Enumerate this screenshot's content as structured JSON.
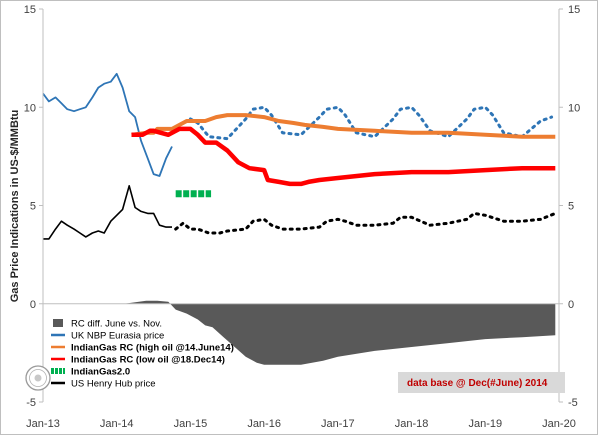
{
  "chart_data": {
    "type": "line",
    "ylabel": "Gas Price  Indications in US-$/MMBtu",
    "ylim": [
      -5,
      15
    ],
    "yticks": [
      -5,
      0,
      5,
      10,
      15
    ],
    "y2ticks": [
      -5,
      0,
      5,
      10,
      15
    ],
    "xlim": [
      2013.0,
      2020.0
    ],
    "xticks": [
      {
        "x": 2013.0,
        "label": "Jan-13"
      },
      {
        "x": 2014.0,
        "label": "Jan-14"
      },
      {
        "x": 2015.0,
        "label": "Jan-15"
      },
      {
        "x": 2016.0,
        "label": "Jan-16"
      },
      {
        "x": 2017.0,
        "label": "Jan-17"
      },
      {
        "x": 2018.0,
        "label": "Jan-18"
      },
      {
        "x": 2019.0,
        "label": "Jan-19"
      },
      {
        "x": 2020.0,
        "label": "Jan-20"
      }
    ],
    "grid": false,
    "legend_position": "bottom-left",
    "note": "data base @ Dec(#June) 2014",
    "series": [
      {
        "name": "RC diff. June vs. Nov.",
        "kind": "area",
        "color": "#595959",
        "x": [
          2014.1,
          2014.4,
          2014.55,
          2014.7,
          2014.8,
          2014.95,
          2015.1,
          2015.2,
          2015.3,
          2015.45,
          2015.6,
          2015.75,
          2015.9,
          2016.0,
          2016.2,
          2016.5,
          2016.8,
          2017.0,
          2017.5,
          2018.0,
          2018.5,
          2019.0,
          2019.5,
          2019.95
        ],
        "y": [
          0.0,
          0.15,
          0.15,
          0.1,
          -0.3,
          -0.5,
          -0.8,
          -1.1,
          -1.2,
          -1.7,
          -2.2,
          -2.7,
          -3.0,
          -3.1,
          -3.1,
          -3.1,
          -2.9,
          -2.7,
          -2.4,
          -2.2,
          -2.0,
          -1.8,
          -1.7,
          -1.6
        ]
      },
      {
        "name": "UK NBP Eurasia price",
        "kind": "line",
        "color": "#2e75b6",
        "x": [
          2013.0,
          2013.08,
          2013.17,
          2013.25,
          2013.33,
          2013.42,
          2013.5,
          2013.58,
          2013.67,
          2013.75,
          2013.83,
          2013.92,
          2014.0,
          2014.08,
          2014.17,
          2014.25,
          2014.33,
          2014.42,
          2014.5,
          2014.58,
          2014.67,
          2014.75
        ],
        "y": [
          10.7,
          10.3,
          10.5,
          10.2,
          9.9,
          9.8,
          9.9,
          10.0,
          10.5,
          11.0,
          11.2,
          11.3,
          11.7,
          11.0,
          9.8,
          9.5,
          8.3,
          7.4,
          6.6,
          6.5,
          7.4,
          8.0
        ]
      },
      {
        "name": "UK NBP Eurasia price (forward)",
        "kind": "dotted",
        "color": "#2e75b6",
        "x": [
          2015.0,
          2015.1,
          2015.25,
          2015.5,
          2015.75,
          2015.85,
          2016.0,
          2016.1,
          2016.25,
          2016.5,
          2016.75,
          2016.85,
          2017.0,
          2017.1,
          2017.25,
          2017.5,
          2017.75,
          2017.85,
          2018.0,
          2018.1,
          2018.25,
          2018.5,
          2018.75,
          2018.85,
          2019.0,
          2019.1,
          2019.25,
          2019.5,
          2019.75,
          2019.9
        ],
        "y": [
          9.4,
          9.2,
          8.5,
          8.4,
          9.4,
          9.9,
          10.0,
          9.6,
          8.7,
          8.6,
          9.5,
          9.9,
          10.0,
          9.6,
          8.7,
          8.5,
          9.4,
          9.9,
          10.0,
          9.6,
          8.8,
          8.5,
          9.4,
          9.9,
          10.0,
          9.6,
          8.7,
          8.5,
          9.3,
          9.5
        ]
      },
      {
        "name": "IndianGas RC (high oil @14.June14)",
        "kind": "line",
        "color": "#ed7d31",
        "x": [
          2014.2,
          2014.4,
          2014.5,
          2014.55,
          2014.75,
          2014.95,
          2015.2,
          2015.35,
          2015.5,
          2015.75,
          2016.0,
          2016.2,
          2016.4,
          2016.55,
          2016.8,
          2017.0,
          2017.5,
          2018.0,
          2018.5,
          2019.0,
          2019.5,
          2019.95
        ],
        "y": [
          8.6,
          8.7,
          8.7,
          8.9,
          8.9,
          9.3,
          9.3,
          9.5,
          9.6,
          9.6,
          9.5,
          9.3,
          9.2,
          9.1,
          9.0,
          8.9,
          8.8,
          8.7,
          8.7,
          8.6,
          8.5,
          8.5
        ]
      },
      {
        "name": "IndianGas RC (low oil @18.Dec14)",
        "kind": "line",
        "color": "#ff0000",
        "x": [
          2014.2,
          2014.35,
          2014.45,
          2014.5,
          2014.6,
          2014.7,
          2014.85,
          2015.0,
          2015.1,
          2015.2,
          2015.35,
          2015.5,
          2015.65,
          2015.8,
          2016.0,
          2016.05,
          2016.2,
          2016.35,
          2016.5,
          2016.6,
          2016.75,
          2017.0,
          2017.5,
          2018.0,
          2018.5,
          2019.0,
          2019.5,
          2019.95
        ],
        "y": [
          8.6,
          8.6,
          8.8,
          8.8,
          8.7,
          8.6,
          8.9,
          8.9,
          8.6,
          8.2,
          8.2,
          7.8,
          7.2,
          6.9,
          6.8,
          6.3,
          6.2,
          6.1,
          6.1,
          6.2,
          6.3,
          6.4,
          6.6,
          6.7,
          6.7,
          6.8,
          6.9,
          6.9
        ]
      },
      {
        "name": "IndianGas2.0",
        "kind": "dashed-band",
        "color": "#00b050",
        "x": [
          2014.8,
          2015.28
        ],
        "y": [
          5.6,
          5.6
        ]
      },
      {
        "name": "US Henry Hub price",
        "kind": "line",
        "color": "#000000",
        "x": [
          2013.0,
          2013.08,
          2013.17,
          2013.25,
          2013.33,
          2013.42,
          2013.5,
          2013.58,
          2013.67,
          2013.75,
          2013.83,
          2013.92,
          2014.0,
          2014.08,
          2014.17,
          2014.25,
          2014.33,
          2014.42,
          2014.5,
          2014.58,
          2014.67,
          2014.75
        ],
        "y": [
          3.3,
          3.3,
          3.8,
          4.2,
          4.0,
          3.8,
          3.6,
          3.4,
          3.6,
          3.7,
          3.6,
          4.2,
          4.5,
          4.8,
          6.0,
          4.9,
          4.7,
          4.6,
          4.6,
          4.0,
          3.9,
          3.9
        ]
      },
      {
        "name": "US Henry Hub price (forward)",
        "kind": "dotted",
        "color": "#000000",
        "x": [
          2014.8,
          2014.9,
          2015.0,
          2015.1,
          2015.25,
          2015.4,
          2015.5,
          2015.75,
          2015.85,
          2016.0,
          2016.1,
          2016.25,
          2016.5,
          2016.75,
          2016.85,
          2017.0,
          2017.1,
          2017.25,
          2017.5,
          2017.75,
          2017.85,
          2018.0,
          2018.25,
          2018.5,
          2018.75,
          2018.85,
          2019.0,
          2019.25,
          2019.5,
          2019.75,
          2019.95
        ],
        "y": [
          3.8,
          4.1,
          3.8,
          3.8,
          3.6,
          3.6,
          3.7,
          3.8,
          4.2,
          4.3,
          4.0,
          3.8,
          3.8,
          3.9,
          4.2,
          4.3,
          4.2,
          4.0,
          4.0,
          4.1,
          4.4,
          4.4,
          4.0,
          4.1,
          4.3,
          4.6,
          4.5,
          4.2,
          4.2,
          4.3,
          4.6
        ]
      }
    ],
    "legend": [
      {
        "label": "RC diff. June vs. Nov.",
        "swatch": "box",
        "color": "#595959",
        "bold": false
      },
      {
        "label": "UK NBP Eurasia price",
        "swatch": "line",
        "color": "#2e75b6",
        "bold": false
      },
      {
        "label": "IndianGas RC (high oil @14.June14)",
        "swatch": "line",
        "color": "#ed7d31",
        "bold": true
      },
      {
        "label": "IndianGas RC (low oil @18.Dec14)",
        "swatch": "line",
        "color": "#ff0000",
        "bold": true
      },
      {
        "label": "IndianGas2.0",
        "swatch": "dashed",
        "color": "#00b050",
        "bold": true
      },
      {
        "label": "US Henry Hub price",
        "swatch": "line",
        "color": "#000000",
        "bold": false
      }
    ]
  }
}
